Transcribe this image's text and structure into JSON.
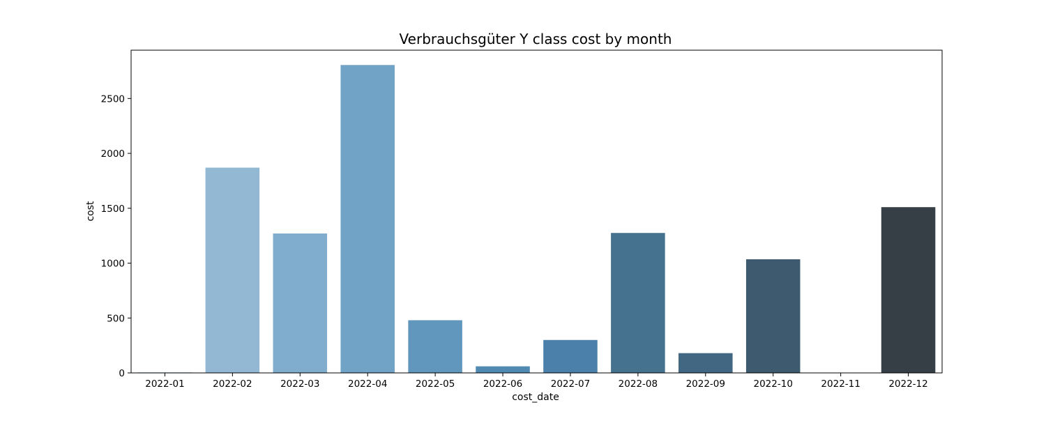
{
  "chart_data": {
    "type": "bar",
    "title": "Verbrauchsgüter Y class cost by month",
    "xlabel": "cost_date",
    "ylabel": "cost",
    "categories": [
      "2022-01",
      "2022-02",
      "2022-03",
      "2022-04",
      "2022-05",
      "2022-06",
      "2022-07",
      "2022-08",
      "2022-09",
      "2022-10",
      "2022-11",
      "2022-12"
    ],
    "values": [
      5,
      1870,
      1270,
      2805,
      480,
      60,
      300,
      1275,
      180,
      1035,
      0,
      1510
    ],
    "colors": [
      "#a6c8e0",
      "#93b8d3",
      "#80acce",
      "#71a3c6",
      "#6197bd",
      "#5089b2",
      "#4a80a9",
      "#45728f",
      "#416782",
      "#3d5a6e",
      "#38485a",
      "#363e46"
    ],
    "ylim": [
      0,
      2940
    ],
    "yticks": [
      0,
      500,
      1000,
      1500,
      2000,
      2500
    ],
    "grid": false,
    "legend": "none"
  }
}
